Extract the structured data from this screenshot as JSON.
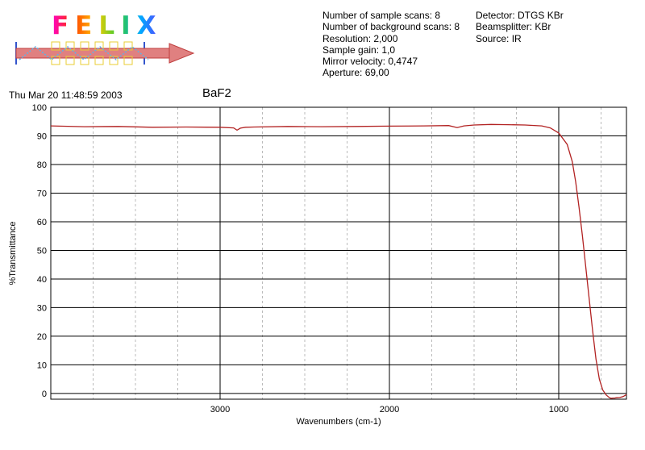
{
  "header": {
    "logo_text": "FELIX",
    "params_left": [
      "Number of sample scans:  8",
      "Number of background scans:  8",
      "Resolution:   2,000",
      "Sample gain:  1,0",
      "Mirror velocity:  0,4747",
      "Aperture:  69,00"
    ],
    "params_right": [
      "Detector:  DTGS KBr",
      "Beamsplitter:  KBr",
      "Source:  IR"
    ],
    "timestamp": "Thu Mar 20 11:48:59 2003",
    "sample_name": "BaF2"
  },
  "colors": {
    "series": "#b22222",
    "grid_major": "#000000",
    "grid_minor": "#bbbbbb",
    "frame": "#000000"
  },
  "chart_data": {
    "type": "line",
    "title": "BaF2",
    "xlabel": "Wavenumbers (cm-1)",
    "ylabel": "%Transmittance",
    "xlim": [
      4000,
      600
    ],
    "x_reversed": true,
    "ylim": [
      -2,
      100
    ],
    "x_ticks": [
      3000,
      2000,
      1000
    ],
    "y_ticks": [
      0,
      10,
      20,
      30,
      40,
      50,
      60,
      70,
      80,
      90,
      100
    ],
    "grid": true,
    "series": [
      {
        "x": [
          4000,
          3800,
          3600,
          3400,
          3200,
          3000,
          2920,
          2900,
          2880,
          2850,
          2800,
          2600,
          2400,
          2200,
          2000,
          1800,
          1650,
          1600,
          1560,
          1500,
          1400,
          1300,
          1200,
          1100,
          1050,
          1000,
          950,
          920,
          900,
          880,
          860,
          840,
          820,
          800,
          780,
          760,
          740,
          720,
          700,
          690,
          680,
          670,
          660,
          640,
          620,
          600
        ],
        "y": [
          93.5,
          93.2,
          93.3,
          93.0,
          93.1,
          93.0,
          92.8,
          92.0,
          92.7,
          93.0,
          93.1,
          93.3,
          93.2,
          93.3,
          93.4,
          93.5,
          93.6,
          92.9,
          93.5,
          93.8,
          94.0,
          93.9,
          93.8,
          93.5,
          92.8,
          91.0,
          87.0,
          81.0,
          74.0,
          65.0,
          55.0,
          44.0,
          33.0,
          22.0,
          12.0,
          5.0,
          1.2,
          -0.5,
          -1.5,
          -1.7,
          -1.6,
          -1.6,
          -1.5,
          -1.4,
          -1.1,
          -0.4
        ]
      }
    ]
  }
}
